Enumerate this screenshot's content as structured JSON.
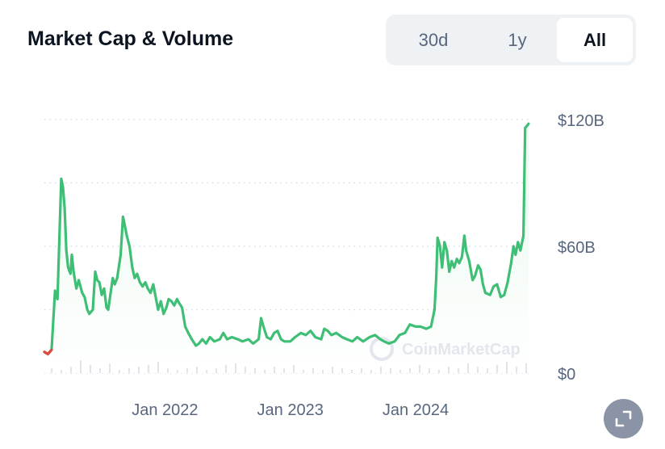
{
  "header": {
    "title": "Market Cap & Volume",
    "ranges": [
      "30d",
      "1y",
      "All"
    ],
    "active_range": "All"
  },
  "watermark": "CoinMarketCap",
  "colors": {
    "line": "#3fbe76",
    "line_start": "#e0473f",
    "area_fill": "#e9f8ef",
    "volume": "#d5d9df",
    "grid": "#cfd6e4",
    "axis_text": "#58667e"
  },
  "chart_data": {
    "type": "area",
    "ylim": [
      0,
      120
    ],
    "yticks": [
      "$0",
      "$60B",
      "$120B"
    ],
    "xticks": [
      "Jan 2022",
      "Jan 2023",
      "Jan 2024"
    ],
    "grid": true,
    "x_start": "2021-01-15",
    "x_end": "2024-11-25",
    "series": [
      {
        "values": [
          [
            "2021-01-15",
            10
          ],
          [
            "2021-01-25",
            9
          ],
          [
            "2021-02-05",
            11
          ],
          [
            "2021-02-15",
            39
          ],
          [
            "2021-02-22",
            35
          ],
          [
            "2021-03-05",
            92
          ],
          [
            "2021-03-10",
            88
          ],
          [
            "2021-03-15",
            78
          ],
          [
            "2021-03-20",
            58
          ],
          [
            "2021-03-25",
            50
          ],
          [
            "2021-04-01",
            47
          ],
          [
            "2021-04-05",
            56
          ],
          [
            "2021-04-10",
            48
          ],
          [
            "2021-04-18",
            40
          ],
          [
            "2021-04-25",
            44
          ],
          [
            "2021-05-05",
            38
          ],
          [
            "2021-05-12",
            36
          ],
          [
            "2021-05-20",
            30
          ],
          [
            "2021-05-26",
            28
          ],
          [
            "2021-06-05",
            30
          ],
          [
            "2021-06-12",
            48
          ],
          [
            "2021-06-18",
            44
          ],
          [
            "2021-06-24",
            43
          ],
          [
            "2021-07-01",
            37
          ],
          [
            "2021-07-08",
            40
          ],
          [
            "2021-07-15",
            31
          ],
          [
            "2021-07-20",
            30
          ],
          [
            "2021-08-02",
            45
          ],
          [
            "2021-08-08",
            42
          ],
          [
            "2021-08-15",
            45
          ],
          [
            "2021-08-25",
            56
          ],
          [
            "2021-09-01",
            74
          ],
          [
            "2021-09-06",
            70
          ],
          [
            "2021-09-12",
            65
          ],
          [
            "2021-09-20",
            60
          ],
          [
            "2021-09-28",
            50
          ],
          [
            "2021-10-05",
            45
          ],
          [
            "2021-10-12",
            47
          ],
          [
            "2021-10-20",
            43
          ],
          [
            "2021-10-28",
            41
          ],
          [
            "2021-11-05",
            43
          ],
          [
            "2021-11-12",
            40
          ],
          [
            "2021-11-20",
            38
          ],
          [
            "2021-11-28",
            42
          ],
          [
            "2021-12-05",
            36
          ],
          [
            "2021-12-12",
            30
          ],
          [
            "2021-12-20",
            34
          ],
          [
            "2021-12-28",
            28
          ],
          [
            "2022-01-05",
            31
          ],
          [
            "2022-01-12",
            35
          ],
          [
            "2022-01-20",
            34
          ],
          [
            "2022-01-28",
            32
          ],
          [
            "2022-02-05",
            35
          ],
          [
            "2022-02-12",
            33
          ],
          [
            "2022-02-20",
            31
          ],
          [
            "2022-03-01",
            22
          ],
          [
            "2022-03-10",
            19
          ],
          [
            "2022-03-20",
            16
          ],
          [
            "2022-04-01",
            13
          ],
          [
            "2022-04-10",
            14
          ],
          [
            "2022-04-20",
            16
          ],
          [
            "2022-05-01",
            14
          ],
          [
            "2022-05-12",
            17
          ],
          [
            "2022-05-25",
            15
          ],
          [
            "2022-06-10",
            16
          ],
          [
            "2022-06-20",
            19
          ],
          [
            "2022-07-01",
            16
          ],
          [
            "2022-07-15",
            17
          ],
          [
            "2022-08-01",
            16
          ],
          [
            "2022-08-15",
            15
          ],
          [
            "2022-09-01",
            16
          ],
          [
            "2022-09-15",
            14
          ],
          [
            "2022-10-01",
            16
          ],
          [
            "2022-10-08",
            26
          ],
          [
            "2022-10-15",
            22
          ],
          [
            "2022-10-25",
            17
          ],
          [
            "2022-11-05",
            16
          ],
          [
            "2022-11-15",
            19
          ],
          [
            "2022-11-25",
            20
          ],
          [
            "2022-12-05",
            16
          ],
          [
            "2022-12-15",
            15
          ],
          [
            "2023-01-01",
            15
          ],
          [
            "2023-01-15",
            17
          ],
          [
            "2023-02-01",
            19
          ],
          [
            "2023-02-15",
            18
          ],
          [
            "2023-03-01",
            20
          ],
          [
            "2023-03-15",
            17
          ],
          [
            "2023-04-01",
            16
          ],
          [
            "2023-04-10",
            21
          ],
          [
            "2023-04-20",
            20
          ],
          [
            "2023-05-01",
            18
          ],
          [
            "2023-05-15",
            19
          ],
          [
            "2023-06-01",
            17
          ],
          [
            "2023-06-15",
            16
          ],
          [
            "2023-07-01",
            15
          ],
          [
            "2023-07-15",
            17
          ],
          [
            "2023-08-01",
            15
          ],
          [
            "2023-08-20",
            17
          ],
          [
            "2023-09-05",
            18
          ],
          [
            "2023-09-20",
            16
          ],
          [
            "2023-10-01",
            15
          ],
          [
            "2023-10-15",
            14
          ],
          [
            "2023-11-01",
            15
          ],
          [
            "2023-11-15",
            18
          ],
          [
            "2023-12-01",
            19
          ],
          [
            "2023-12-15",
            23
          ],
          [
            "2024-01-01",
            22
          ],
          [
            "2024-01-15",
            22
          ],
          [
            "2024-02-01",
            21
          ],
          [
            "2024-02-15",
            22
          ],
          [
            "2024-02-25",
            30
          ],
          [
            "2024-03-01",
            45
          ],
          [
            "2024-03-05",
            64
          ],
          [
            "2024-03-12",
            60
          ],
          [
            "2024-03-18",
            50
          ],
          [
            "2024-03-25",
            62
          ],
          [
            "2024-04-01",
            58
          ],
          [
            "2024-04-08",
            48
          ],
          [
            "2024-04-15",
            53
          ],
          [
            "2024-04-22",
            50
          ],
          [
            "2024-04-30",
            54
          ],
          [
            "2024-05-07",
            52
          ],
          [
            "2024-05-15",
            55
          ],
          [
            "2024-05-22",
            65
          ],
          [
            "2024-05-27",
            58
          ],
          [
            "2024-06-05",
            53
          ],
          [
            "2024-06-15",
            44
          ],
          [
            "2024-06-22",
            46
          ],
          [
            "2024-07-01",
            51
          ],
          [
            "2024-07-08",
            49
          ],
          [
            "2024-07-15",
            42
          ],
          [
            "2024-07-22",
            38
          ],
          [
            "2024-08-05",
            37
          ],
          [
            "2024-08-15",
            41
          ],
          [
            "2024-08-25",
            42
          ],
          [
            "2024-09-05",
            36
          ],
          [
            "2024-09-15",
            37
          ],
          [
            "2024-09-25",
            43
          ],
          [
            "2024-10-05",
            52
          ],
          [
            "2024-10-12",
            60
          ],
          [
            "2024-10-18",
            56
          ],
          [
            "2024-10-25",
            62
          ],
          [
            "2024-11-01",
            58
          ],
          [
            "2024-11-10",
            65
          ],
          [
            "2024-11-15",
            116
          ],
          [
            "2024-11-25",
            118
          ]
        ]
      }
    ]
  }
}
